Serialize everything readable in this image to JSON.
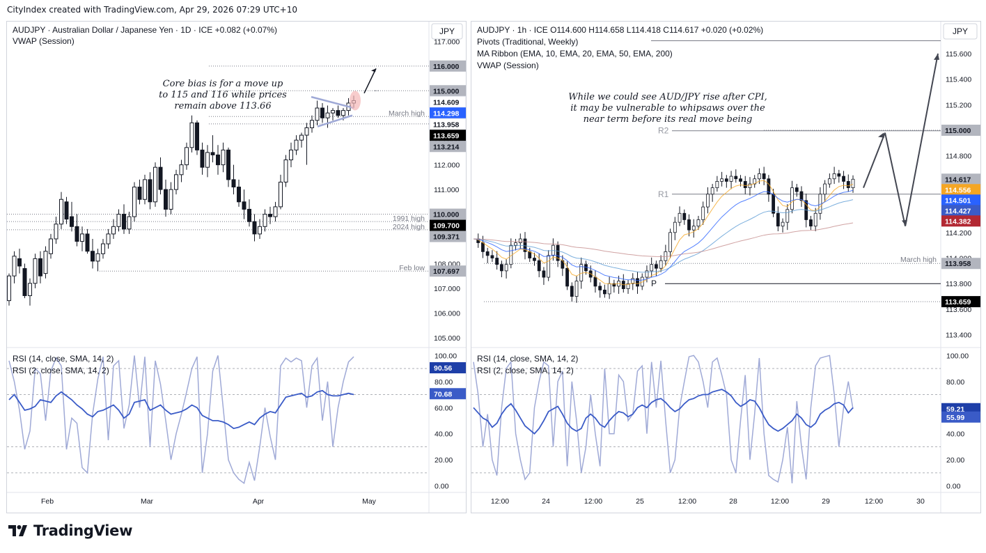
{
  "header": {
    "text": "CityIndex created with TradingView.com, Apr 29, 2026 07:29 UTC+10"
  },
  "footer": {
    "brand": "TradingView"
  },
  "colors": {
    "up": "#131722",
    "down": "#131722",
    "blue": "#2962ff",
    "rsi_light": "#9fa9d6",
    "rsi_dark": "#3a5bc7",
    "label_gray": "#787b86",
    "pivot_gray": "#b2b5be"
  },
  "chart_data": [
    {
      "type": "candlestick",
      "panel": "left",
      "title": "AUDJPY · Australian Dollar / Japanese Yen · 1D · ICE  +0.082 (+0.07%)",
      "indicator": "VWAP (Session)",
      "currency": "JPY",
      "annotation": [
        "Core bias is for a move up",
        "to 115 and 116 while prices",
        "remain above 113.66"
      ],
      "ylim": [
        104.6,
        117.8
      ],
      "y_ticks": [
        105.0,
        106.0,
        107.0,
        108.0,
        109.0,
        110.0,
        111.0,
        112.0,
        113.0,
        114.0,
        115.0,
        116.0,
        117.0
      ],
      "x_ticks": [
        "Feb",
        "Mar",
        "Apr",
        "May"
      ],
      "price_labels": [
        {
          "value": "116.000",
          "price": 116.0,
          "color": "#b2b5be"
        },
        {
          "value": "115.000",
          "price": 115.0,
          "color": "#b2b5be"
        },
        {
          "value": "114.609",
          "price": 114.609,
          "color": "#ffffff"
        },
        {
          "value": "114.298",
          "price": 114.298,
          "color": "#2962ff"
        },
        {
          "value": "113.958",
          "price": 113.958,
          "color": "#ffffff"
        },
        {
          "value": "113.659",
          "price": 113.659,
          "color": "#000000"
        },
        {
          "value": "113.214",
          "price": 113.214,
          "color": "#b2b5be"
        },
        {
          "value": "110.000",
          "price": 110.0,
          "color": "#b2b5be"
        },
        {
          "value": "109.700",
          "price": 109.7,
          "color": "#000000"
        },
        {
          "value": "109.371",
          "price": 109.371,
          "color": "#b2b5be"
        },
        {
          "value": "107.697",
          "price": 107.697,
          "color": "#b2b5be"
        }
      ],
      "level_lines": [
        {
          "price": 116.0,
          "label": ""
        },
        {
          "price": 115.0,
          "label": ""
        },
        {
          "price": 113.958,
          "label": "March high"
        },
        {
          "price": 113.659,
          "label": ""
        },
        {
          "price": 109.7,
          "label": "1991 high"
        },
        {
          "price": 109.371,
          "label": "2024 high"
        },
        {
          "price": 110.0,
          "label": ""
        },
        {
          "price": 107.697,
          "label": "Feb low"
        }
      ],
      "candles": [
        [
          106.5,
          107.6,
          106.3,
          107.5
        ],
        [
          107.5,
          108.5,
          107.2,
          108.3
        ],
        [
          108.2,
          108.6,
          107.6,
          107.9
        ],
        [
          107.8,
          108.0,
          106.6,
          106.7
        ],
        [
          106.7,
          107.4,
          106.3,
          107.2
        ],
        [
          107.2,
          108.4,
          107.0,
          108.2
        ],
        [
          108.2,
          108.5,
          107.2,
          107.5
        ],
        [
          107.6,
          108.7,
          107.4,
          108.5
        ],
        [
          108.4,
          109.2,
          108.2,
          109.0
        ],
        [
          109.0,
          109.9,
          108.8,
          109.6
        ],
        [
          109.6,
          110.9,
          109.4,
          110.6
        ],
        [
          110.5,
          110.7,
          109.6,
          109.8
        ],
        [
          109.9,
          110.5,
          109.3,
          109.5
        ],
        [
          109.5,
          110.0,
          108.7,
          108.9
        ],
        [
          108.9,
          109.5,
          108.5,
          109.2
        ],
        [
          109.2,
          109.4,
          108.4,
          108.5
        ],
        [
          108.5,
          109.0,
          107.8,
          108.1
        ],
        [
          108.1,
          108.6,
          107.7,
          108.4
        ],
        [
          108.4,
          109.0,
          108.2,
          108.8
        ],
        [
          108.8,
          109.4,
          108.6,
          109.2
        ],
        [
          109.2,
          109.8,
          109.0,
          109.5
        ],
        [
          109.5,
          110.2,
          109.3,
          110.0
        ],
        [
          110.0,
          110.4,
          109.2,
          109.4
        ],
        [
          109.4,
          110.1,
          109.2,
          109.9
        ],
        [
          109.9,
          111.3,
          109.7,
          111.1
        ],
        [
          111.1,
          111.4,
          110.4,
          110.6
        ],
        [
          110.6,
          111.6,
          110.4,
          111.4
        ],
        [
          111.4,
          111.7,
          110.2,
          110.5
        ],
        [
          110.5,
          112.1,
          110.3,
          111.9
        ],
        [
          111.9,
          112.3,
          110.8,
          111.0
        ],
        [
          111.0,
          111.4,
          109.9,
          110.2
        ],
        [
          110.2,
          111.3,
          110.0,
          111.0
        ],
        [
          111.0,
          111.8,
          110.8,
          111.6
        ],
        [
          111.6,
          112.2,
          111.3,
          112.0
        ],
        [
          112.0,
          112.9,
          111.8,
          112.7
        ],
        [
          112.7,
          114.0,
          112.5,
          113.7
        ],
        [
          113.7,
          113.8,
          112.4,
          112.6
        ],
        [
          112.6,
          112.9,
          111.6,
          111.9
        ],
        [
          111.9,
          112.8,
          111.5,
          112.5
        ],
        [
          112.5,
          113.2,
          112.1,
          112.4
        ],
        [
          112.4,
          112.8,
          111.6,
          112.0
        ],
        [
          112.0,
          112.9,
          111.7,
          112.6
        ],
        [
          112.6,
          112.7,
          111.1,
          111.4
        ],
        [
          111.4,
          112.0,
          110.8,
          111.1
        ],
        [
          111.1,
          111.4,
          110.3,
          110.5
        ],
        [
          110.5,
          111.0,
          109.8,
          110.2
        ],
        [
          110.2,
          110.6,
          109.5,
          109.7
        ],
        [
          109.7,
          110.0,
          108.9,
          109.2
        ],
        [
          109.2,
          109.8,
          109.0,
          109.5
        ],
        [
          109.5,
          110.2,
          109.3,
          110.0
        ],
        [
          110.0,
          110.3,
          109.6,
          109.9
        ],
        [
          109.9,
          110.5,
          109.7,
          110.3
        ],
        [
          110.3,
          111.6,
          110.2,
          111.3
        ],
        [
          111.3,
          112.4,
          111.1,
          112.2
        ],
        [
          112.2,
          112.9,
          111.9,
          112.6
        ],
        [
          112.6,
          113.2,
          112.4,
          113.0
        ],
        [
          113.0,
          113.3,
          112.7,
          113.2
        ],
        [
          113.2,
          113.7,
          112.0,
          113.5
        ],
        [
          113.5,
          114.0,
          113.3,
          113.8
        ],
        [
          113.8,
          114.6,
          113.6,
          114.3
        ],
        [
          114.3,
          114.5,
          113.7,
          113.9
        ],
        [
          113.9,
          114.4,
          113.5,
          114.1
        ],
        [
          114.1,
          114.3,
          113.8,
          114.2
        ],
        [
          114.2,
          114.4,
          113.9,
          114.0
        ],
        [
          114.0,
          114.3,
          113.8,
          114.2
        ],
        [
          114.2,
          114.7,
          114.0,
          114.5
        ],
        [
          114.5,
          114.8,
          114.3,
          114.6
        ]
      ],
      "vwap_last": 114.298,
      "rsi": {
        "label1": "RSI (14, close, SMA, 14, 2)",
        "label2": "RSI (2, close, SMA, 14, 2)",
        "ylim": [
          -5,
          105
        ],
        "ticks": [
          0,
          20,
          40,
          60,
          80,
          100
        ],
        "tick_labels": [
          "0.00",
          "20.00",
          "40.00",
          "60.00",
          "80.00",
          "100.00"
        ],
        "last_rsi2": "90.56",
        "last_rsi14": "70.68",
        "rsi14": [
          66,
          70,
          64,
          58,
          59,
          61,
          66,
          65,
          64,
          69,
          72,
          69,
          66,
          62,
          59,
          55,
          53,
          57,
          58,
          60,
          62,
          58,
          52,
          55,
          64,
          65,
          66,
          58,
          60,
          62,
          58,
          55,
          56,
          57,
          59,
          62,
          60,
          54,
          52,
          50,
          50,
          49,
          47,
          44,
          45,
          47,
          49,
          47,
          52,
          55,
          57,
          56,
          62,
          68,
          69,
          70,
          71,
          68,
          69,
          72,
          73,
          70,
          69,
          69,
          70,
          71,
          70
        ],
        "rsi2": [
          96,
          80,
          58,
          28,
          42,
          90,
          86,
          50,
          88,
          98,
          92,
          28,
          52,
          48,
          14,
          10,
          55,
          82,
          99,
          35,
          92,
          96,
          44,
          62,
          100,
          60,
          99,
          30,
          96,
          78,
          50,
          20,
          40,
          55,
          72,
          90,
          99,
          10,
          40,
          88,
          100,
          60,
          20,
          10,
          5,
          2,
          18,
          4,
          30,
          60,
          38,
          20,
          92,
          98,
          95,
          98,
          96,
          60,
          92,
          98,
          50,
          80,
          30,
          60,
          80,
          95,
          99
        ]
      }
    },
    {
      "type": "candlestick",
      "panel": "right",
      "title": "AUDJPY · 1h · ICE  O114.600  H114.658  L114.418  C114.617  +0.020 (+0.02%)",
      "indicators": [
        "Pivots (Traditional, Weekly)",
        "MA Ribbon (EMA, 10, EMA, 20, EMA, 50, EMA, 200)",
        "VWAP (Session)"
      ],
      "currency": "JPY",
      "annotation": [
        "While we could see AUD/JPY rise after CPI,",
        "it may be vulnerable to whipsaws over the",
        "near term before its real move being"
      ],
      "ylim": [
        113.3,
        115.85
      ],
      "y_ticks": [
        113.4,
        113.6,
        113.8,
        114.0,
        114.2,
        114.4,
        114.6,
        114.8,
        115.0,
        115.2,
        115.4,
        115.6
      ],
      "x_ticks": [
        "12:00",
        "24",
        "12:00",
        "25",
        "12:00",
        "28",
        "12:00",
        "29",
        "12:00",
        "30"
      ],
      "price_labels": [
        {
          "value": "115.000",
          "price": 115.0,
          "color": "#b2b5be"
        },
        {
          "value": "114.617",
          "price": 114.617,
          "color": "#b2b5be"
        },
        {
          "value": "114.556",
          "price": 114.556,
          "color": "#f5a623"
        },
        {
          "value": "114.501",
          "price": 114.501,
          "color": "#2962ff"
        },
        {
          "value": "114.427",
          "price": 114.427,
          "color": "#3a5bc7"
        },
        {
          "value": "114.382",
          "price": 114.382,
          "color": "#b22833"
        },
        {
          "value": "113.958",
          "price": 113.958,
          "color": "#b2b5be"
        },
        {
          "value": "113.659",
          "price": 113.659,
          "color": "#000000"
        }
      ],
      "pivots": [
        {
          "label": "R2",
          "price": 114.996
        },
        {
          "label": "R1",
          "price": 114.5
        },
        {
          "label": "P",
          "price": 113.8
        }
      ],
      "level_lines": [
        {
          "price": 115.0,
          "label": ""
        },
        {
          "price": 113.958,
          "label": "March high"
        },
        {
          "price": 113.659,
          "label": ""
        }
      ],
      "rsi": {
        "label1": "RSI (14, close, SMA, 14, 2)",
        "label2": "RSI (2, close, SMA, 14, 2)",
        "ylim": [
          -5,
          105
        ],
        "ticks": [
          0,
          20,
          40,
          60,
          80,
          100
        ],
        "tick_labels": [
          "0.00",
          "20.00",
          "40.00",
          "60.00",
          "80.00",
          "100.00"
        ],
        "last_rsi2": "59.21",
        "last_rsi14": "55.99",
        "rsi14": [
          60,
          56,
          52,
          50,
          45,
          48,
          55,
          60,
          63,
          58,
          52,
          46,
          43,
          40,
          44,
          50,
          57,
          59,
          61,
          55,
          48,
          44,
          42,
          44,
          52,
          55,
          52,
          47,
          45,
          50,
          54,
          57,
          56,
          53,
          55,
          60,
          62,
          60,
          64,
          66,
          67,
          64,
          60,
          57,
          59,
          63,
          66,
          67,
          69,
          70,
          70,
          72,
          73,
          74,
          72,
          69,
          64,
          61,
          63,
          66,
          65,
          60,
          53,
          47,
          44,
          42,
          44,
          47,
          50,
          55,
          52,
          47,
          45,
          48,
          55,
          58,
          60,
          63,
          64,
          62,
          56,
          60
        ],
        "rsi2": [
          95,
          70,
          30,
          55,
          20,
          8,
          60,
          90,
          95,
          40,
          20,
          5,
          10,
          60,
          80,
          95,
          92,
          30,
          80,
          88,
          15,
          80,
          50,
          10,
          30,
          70,
          40,
          15,
          90,
          40,
          40,
          85,
          80,
          50,
          55,
          88,
          92,
          40,
          95,
          60,
          96,
          50,
          10,
          20,
          60,
          80,
          99,
          100,
          95,
          80,
          60,
          95,
          98,
          85,
          70,
          20,
          10,
          50,
          85,
          20,
          55,
          98,
          40,
          8,
          5,
          3,
          20,
          45,
          2,
          65,
          30,
          5,
          60,
          92,
          98,
          99,
          100,
          70,
          30,
          60,
          80,
          59
        ]
      },
      "hourly_path": [
        114.15,
        114.12,
        114.05,
        114.02,
        114.0,
        113.95,
        113.9,
        113.95,
        114.1,
        114.12,
        114.15,
        114.05,
        114.0,
        113.98,
        113.9,
        113.85,
        114.02,
        114.1,
        113.98,
        113.92,
        113.78,
        113.7,
        113.82,
        113.95,
        113.9,
        113.85,
        113.78,
        113.75,
        113.72,
        113.8,
        113.78,
        113.82,
        113.76,
        113.8,
        113.84,
        113.78,
        113.85,
        113.9,
        113.95,
        113.92,
        113.98,
        114.05,
        114.2,
        114.28,
        114.35,
        114.3,
        114.22,
        114.25,
        114.3,
        114.4,
        114.5,
        114.55,
        114.6,
        114.62,
        114.6,
        114.64,
        114.62,
        114.6,
        114.55,
        114.58,
        114.62,
        114.66,
        114.62,
        114.5,
        114.35,
        114.25,
        114.28,
        114.38,
        114.55,
        114.52,
        114.45,
        114.3,
        114.25,
        114.35,
        114.5,
        114.58,
        114.62,
        114.66,
        114.64,
        114.6,
        114.55,
        114.617
      ]
    }
  ]
}
